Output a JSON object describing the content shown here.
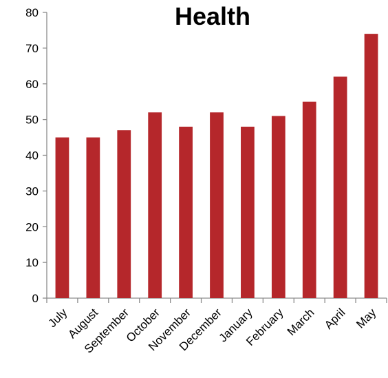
{
  "chart_data": {
    "type": "bar",
    "title": "Health",
    "xlabel": "",
    "ylabel": "",
    "categories": [
      "July",
      "August",
      "September",
      "October",
      "November",
      "December",
      "January",
      "February",
      "March",
      "April",
      "May"
    ],
    "values": [
      45,
      45,
      47,
      52,
      48,
      52,
      48,
      51,
      55,
      62,
      74
    ],
    "ylim": [
      0,
      80
    ],
    "yticks": [
      0,
      10,
      20,
      30,
      40,
      50,
      60,
      70,
      80
    ],
    "grid": false,
    "legend": "none",
    "bar_color": "#b5272b"
  }
}
